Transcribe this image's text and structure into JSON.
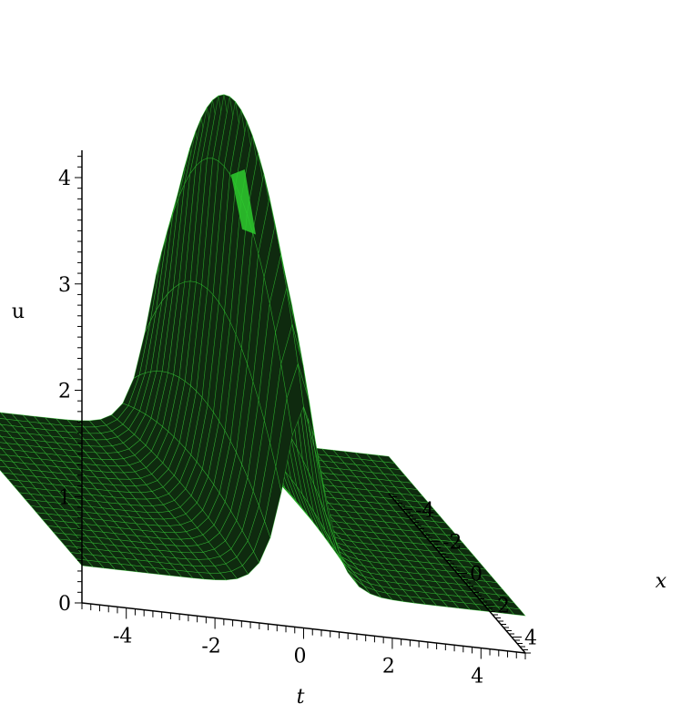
{
  "chart_data": {
    "type": "surface3d",
    "title": "",
    "axes": {
      "t": {
        "label": "t",
        "range": [
          -5,
          5
        ],
        "ticks": [
          "-4",
          "-2",
          "0",
          "2",
          "4"
        ]
      },
      "x": {
        "label": "x",
        "range": [
          -5,
          5
        ],
        "ticks": [
          "-4",
          "-2",
          "0",
          "2",
          "4"
        ]
      },
      "u": {
        "label": "u",
        "range": [
          0,
          4.2
        ],
        "ticks": [
          "0",
          "1",
          "2",
          "3",
          "4"
        ]
      }
    },
    "surface": {
      "peak": {
        "t": 0,
        "x": 0,
        "u": 4.2
      },
      "baseline_u": 0.35,
      "ridge_profile_u": [
        0.35,
        0.4,
        0.6,
        1.3,
        2.3,
        4.2,
        2.3,
        1.3,
        0.6,
        0.4,
        0.35
      ]
    },
    "colors": {
      "surface_fill": "#0f2a0f",
      "mesh_lines": "#35d835",
      "highlight": "#2ecc2e",
      "axis": "#000000"
    },
    "grid": false,
    "legend": "none"
  }
}
